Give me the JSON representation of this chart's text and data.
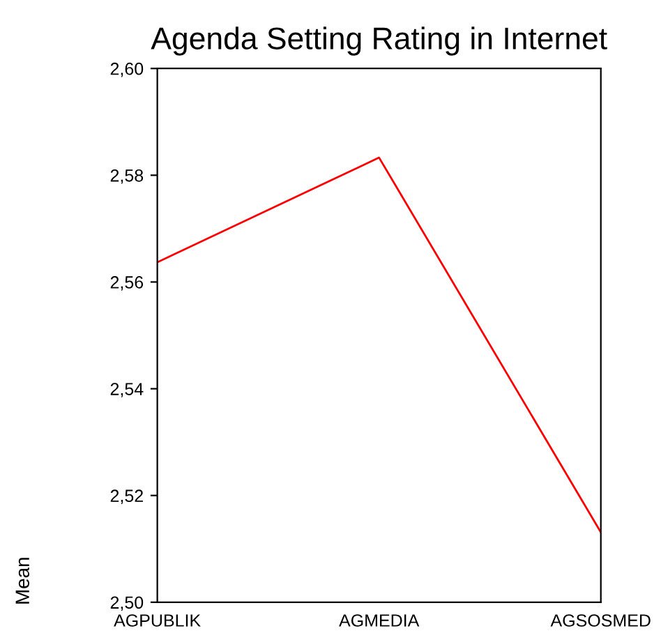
{
  "chart_data": {
    "type": "line",
    "title": "Agenda Setting Rating in Internet",
    "ylabel": "Mean",
    "categories": [
      "AGPUBLIK",
      "AGMEDIA",
      "AGSOSMED"
    ],
    "series": [
      {
        "color": "#ff0000",
        "values": [
          2.5637,
          2.5833,
          2.5131
        ]
      }
    ],
    "ylim": [
      2.5,
      2.6
    ],
    "yticks": [
      {
        "value": 2.5,
        "label": "2,50"
      },
      {
        "value": 2.52,
        "label": "2,52"
      },
      {
        "value": 2.54,
        "label": "2,54"
      },
      {
        "value": 2.56,
        "label": "2,56"
      },
      {
        "value": 2.58,
        "label": "2,58"
      },
      {
        "value": 2.6,
        "label": "2,60"
      }
    ],
    "grid": false
  }
}
